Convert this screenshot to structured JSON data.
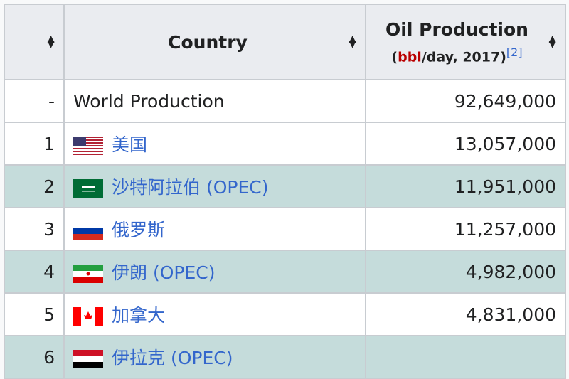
{
  "header": {
    "rank_label": "",
    "country_label": "Country",
    "production_label": "Oil Production",
    "production_unit_prefix": "(",
    "production_unit_link": "bbl",
    "production_unit_suffix": "/day, 2017)",
    "reference": "[2]"
  },
  "rows": [
    {
      "rank": "-",
      "country": "World Production",
      "link": false,
      "flag": "",
      "value": "92,649,000"
    },
    {
      "rank": "1",
      "country": "美国",
      "link": true,
      "flag": "us",
      "value": "13,057,000"
    },
    {
      "rank": "2",
      "country": "沙特阿拉伯 (OPEC)",
      "link": true,
      "flag": "sa",
      "value": "11,951,000"
    },
    {
      "rank": "3",
      "country": "俄罗斯",
      "link": true,
      "flag": "ru",
      "value": "11,257,000"
    },
    {
      "rank": "4",
      "country": "伊朗 (OPEC)",
      "link": true,
      "flag": "ir",
      "value": "4,982,000"
    },
    {
      "rank": "5",
      "country": "加拿大",
      "link": true,
      "flag": "ca",
      "value": "4,831,000"
    },
    {
      "rank": "6",
      "country": "伊拉克 (OPEC)",
      "link": true,
      "flag": "iq",
      "value": ""
    }
  ],
  "colors": {
    "header_bg": "#eaecf0",
    "alt_row_bg": "#c5dcdb",
    "link": "#3366cc",
    "border": "#c8ccd1"
  }
}
